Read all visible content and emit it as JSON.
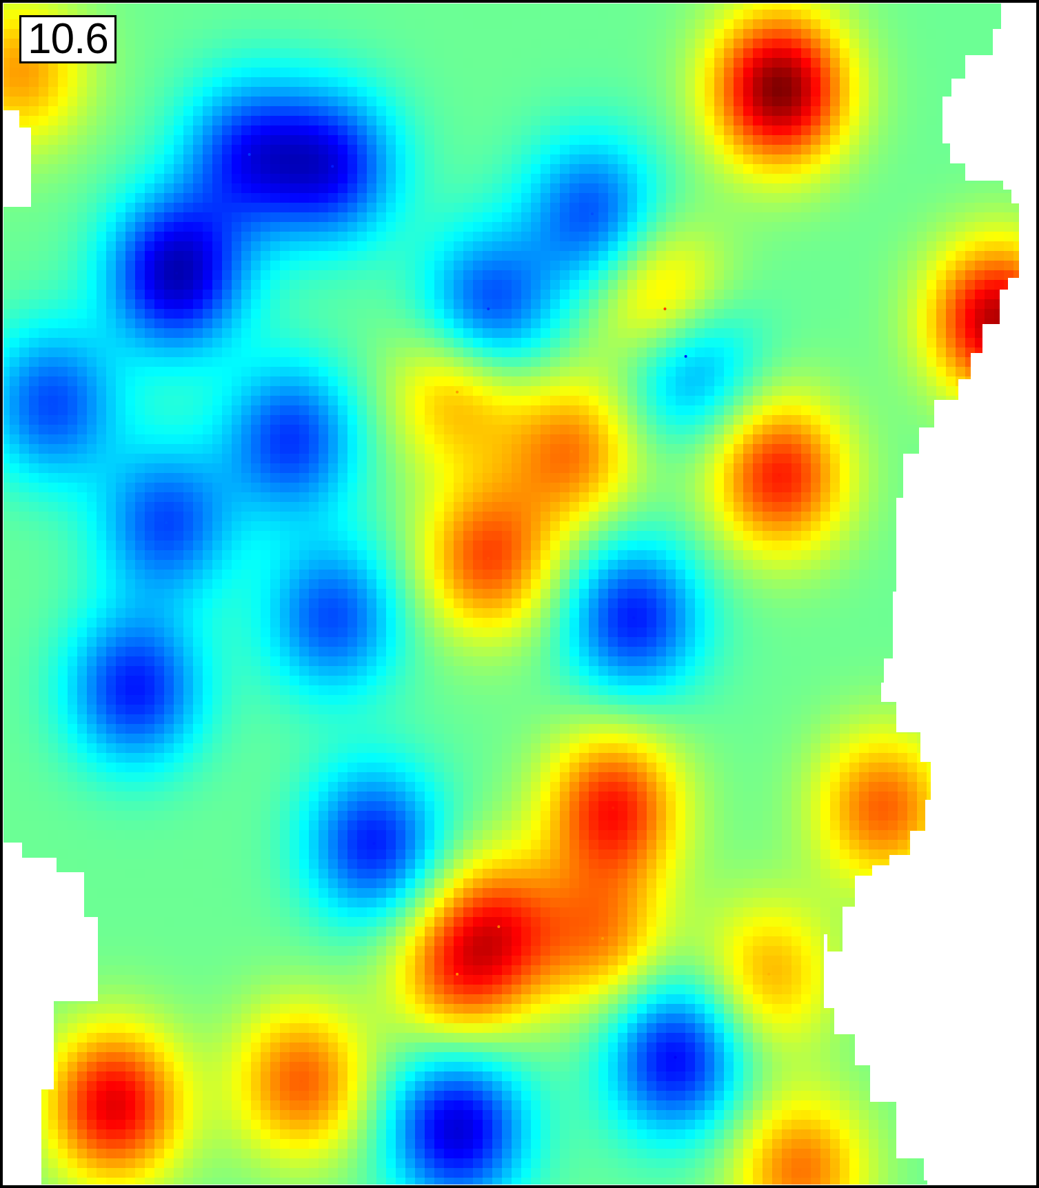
{
  "chart_data": {
    "type": "heatmap",
    "annotation": "10.6",
    "colormap": "jet",
    "colormap_stops": [
      "#00008b",
      "#0000ff",
      "#0080ff",
      "#00ffff",
      "#80ff80",
      "#ffff00",
      "#ff8000",
      "#ff0000",
      "#800000"
    ],
    "no_data_color": "#ffffff",
    "frame_color": "#000000",
    "axes_visible": false,
    "grid": false,
    "legend": "none",
    "value_range": [
      0,
      1
    ],
    "hotspots_high": [
      {
        "x": 0.75,
        "y": 0.075,
        "value": 1.0
      },
      {
        "x": 0.96,
        "y": 0.27,
        "value": 0.95
      },
      {
        "x": 0.75,
        "y": 0.4,
        "value": 0.85
      },
      {
        "x": 0.64,
        "y": 0.26,
        "value": 0.82
      },
      {
        "x": 0.47,
        "y": 0.47,
        "value": 0.8
      },
      {
        "x": 0.59,
        "y": 0.68,
        "value": 0.85
      },
      {
        "x": 0.55,
        "y": 0.38,
        "value": 0.75
      },
      {
        "x": 0.44,
        "y": 0.33,
        "value": 0.72
      },
      {
        "x": 0.85,
        "y": 0.68,
        "value": 0.78
      },
      {
        "x": 0.48,
        "y": 0.78,
        "value": 0.76
      },
      {
        "x": 0.44,
        "y": 0.82,
        "value": 0.74
      },
      {
        "x": 0.58,
        "y": 0.79,
        "value": 0.72
      },
      {
        "x": 0.11,
        "y": 0.93,
        "value": 0.9
      },
      {
        "x": 0.29,
        "y": 0.91,
        "value": 0.78
      },
      {
        "x": 0.74,
        "y": 0.82,
        "value": 0.7
      },
      {
        "x": 0.77,
        "y": 0.985,
        "value": 0.76
      },
      {
        "x": 0.02,
        "y": 0.06,
        "value": 0.72
      }
    ],
    "hotspots_low": [
      {
        "x": 0.17,
        "y": 0.23,
        "value": 0.05
      },
      {
        "x": 0.05,
        "y": 0.34,
        "value": 0.2
      },
      {
        "x": 0.32,
        "y": 0.14,
        "value": 0.15
      },
      {
        "x": 0.28,
        "y": 0.37,
        "value": 0.18
      },
      {
        "x": 0.13,
        "y": 0.58,
        "value": 0.15
      },
      {
        "x": 0.61,
        "y": 0.52,
        "value": 0.15
      },
      {
        "x": 0.47,
        "y": 0.26,
        "value": 0.17
      },
      {
        "x": 0.66,
        "y": 0.3,
        "value": 0.15
      },
      {
        "x": 0.36,
        "y": 0.71,
        "value": 0.15
      },
      {
        "x": 0.65,
        "y": 0.89,
        "value": 0.12
      },
      {
        "x": 0.44,
        "y": 0.95,
        "value": 0.08
      },
      {
        "x": 0.24,
        "y": 0.13,
        "value": 0.18
      },
      {
        "x": 0.57,
        "y": 0.18,
        "value": 0.2
      },
      {
        "x": 0.16,
        "y": 0.44,
        "value": 0.2
      },
      {
        "x": 0.32,
        "y": 0.52,
        "value": 0.2
      }
    ]
  }
}
